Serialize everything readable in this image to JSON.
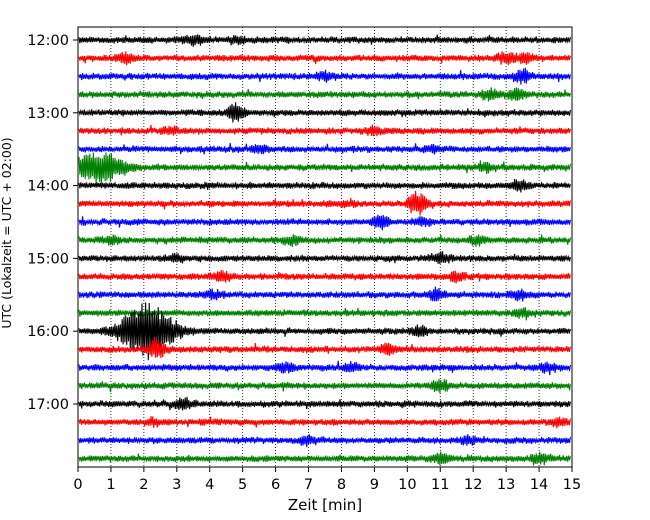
{
  "chart_data": {
    "type": "line",
    "title": "",
    "xlabel": "Zeit  [min]",
    "ylabel": "UTC (Lokalzeit = UTC + 02:00)",
    "xlim": [
      0,
      15
    ],
    "x_ticks": [
      "0",
      "1",
      "2",
      "3",
      "4",
      "5",
      "6",
      "7",
      "8",
      "9",
      "10",
      "11",
      "12",
      "13",
      "14",
      "15"
    ],
    "y_tick_labels": [
      "12:00",
      "13:00",
      "14:00",
      "15:00",
      "16:00",
      "17:00"
    ],
    "grid": "vertical dotted",
    "legend": "none",
    "colors": [
      "#000000",
      "#ff0000",
      "#0000ff",
      "#008000"
    ],
    "traces": [
      {
        "start": "12:00",
        "color": "#000000",
        "events": [
          {
            "t": 3.5,
            "a": 1.1
          },
          {
            "t": 4.8,
            "a": 0.6
          }
        ]
      },
      {
        "start": "12:15",
        "color": "#ff0000",
        "events": [
          {
            "t": 1.4,
            "a": 1.0
          },
          {
            "t": 13.0,
            "a": 1.2
          },
          {
            "t": 13.6,
            "a": 0.8
          }
        ]
      },
      {
        "start": "12:30",
        "color": "#0000ff",
        "events": [
          {
            "t": 7.5,
            "a": 0.8
          },
          {
            "t": 13.5,
            "a": 1.3
          }
        ]
      },
      {
        "start": "12:45",
        "color": "#008000",
        "events": [
          {
            "t": 12.5,
            "a": 1.0
          },
          {
            "t": 13.3,
            "a": 1.1
          }
        ]
      },
      {
        "start": "13:00",
        "color": "#000000",
        "events": [
          {
            "t": 4.8,
            "a": 1.8
          }
        ]
      },
      {
        "start": "13:15",
        "color": "#ff0000",
        "events": [
          {
            "t": 2.8,
            "a": 0.7
          },
          {
            "t": 9.0,
            "a": 0.8
          }
        ]
      },
      {
        "start": "13:30",
        "color": "#0000ff",
        "events": [
          {
            "t": 5.5,
            "a": 0.6
          },
          {
            "t": 10.8,
            "a": 0.6
          }
        ]
      },
      {
        "start": "13:45",
        "color": "#008000",
        "events": [
          {
            "t": 0.6,
            "a": 3.2
          },
          {
            "t": 12.4,
            "a": 0.8
          }
        ]
      },
      {
        "start": "14:00",
        "color": "#000000",
        "events": [
          {
            "t": 13.4,
            "a": 1.0
          }
        ]
      },
      {
        "start": "14:15",
        "color": "#ff0000",
        "events": [
          {
            "t": 10.3,
            "a": 2.4
          },
          {
            "t": 8.2,
            "a": 0.6
          }
        ]
      },
      {
        "start": "14:30",
        "color": "#0000ff",
        "events": [
          {
            "t": 9.2,
            "a": 1.2
          },
          {
            "t": 10.5,
            "a": 0.7
          }
        ]
      },
      {
        "start": "14:45",
        "color": "#008000",
        "events": [
          {
            "t": 6.5,
            "a": 1.0
          },
          {
            "t": 12.1,
            "a": 0.8
          },
          {
            "t": 1.0,
            "a": 0.6
          }
        ]
      },
      {
        "start": "15:00",
        "color": "#000000",
        "events": [
          {
            "t": 3.0,
            "a": 0.6
          },
          {
            "t": 11.0,
            "a": 1.1
          }
        ]
      },
      {
        "start": "15:15",
        "color": "#ff0000",
        "events": [
          {
            "t": 4.4,
            "a": 1.0
          },
          {
            "t": 11.5,
            "a": 1.0
          }
        ]
      },
      {
        "start": "15:30",
        "color": "#0000ff",
        "events": [
          {
            "t": 4.1,
            "a": 0.8
          },
          {
            "t": 10.9,
            "a": 1.1
          },
          {
            "t": 13.4,
            "a": 0.8
          }
        ]
      },
      {
        "start": "15:45",
        "color": "#008000",
        "events": [
          {
            "t": 13.5,
            "a": 0.7
          }
        ]
      },
      {
        "start": "16:00",
        "color": "#000000",
        "events": [
          {
            "t": 2.1,
            "a": 6.0
          },
          {
            "t": 10.4,
            "a": 0.9
          }
        ]
      },
      {
        "start": "16:15",
        "color": "#ff0000",
        "events": [
          {
            "t": 2.4,
            "a": 1.8
          },
          {
            "t": 9.4,
            "a": 0.9
          }
        ]
      },
      {
        "start": "16:30",
        "color": "#0000ff",
        "events": [
          {
            "t": 6.3,
            "a": 0.9
          },
          {
            "t": 8.3,
            "a": 0.7
          },
          {
            "t": 14.3,
            "a": 0.9
          }
        ]
      },
      {
        "start": "16:45",
        "color": "#008000",
        "events": [
          {
            "t": 11.0,
            "a": 1.2
          }
        ]
      },
      {
        "start": "17:00",
        "color": "#000000",
        "events": [
          {
            "t": 3.2,
            "a": 1.0
          }
        ]
      },
      {
        "start": "17:15",
        "color": "#ff0000",
        "events": [
          {
            "t": 2.3,
            "a": 0.7
          },
          {
            "t": 14.6,
            "a": 0.8
          }
        ]
      },
      {
        "start": "17:30",
        "color": "#0000ff",
        "events": [
          {
            "t": 7.0,
            "a": 0.9
          },
          {
            "t": 11.8,
            "a": 0.7
          }
        ]
      },
      {
        "start": "17:45",
        "color": "#008000",
        "events": [
          {
            "t": 11.0,
            "a": 0.9
          },
          {
            "t": 14.0,
            "a": 1.0
          }
        ]
      }
    ]
  }
}
